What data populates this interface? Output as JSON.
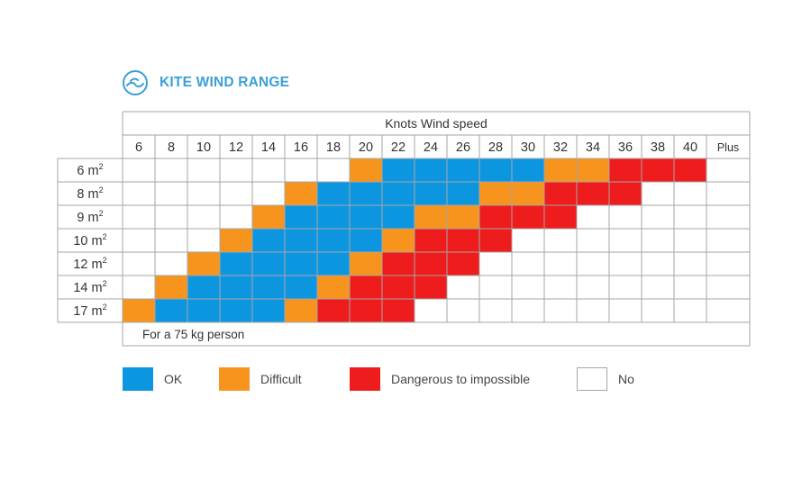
{
  "header": {
    "title": "KITE WIND RANGE",
    "logo_icon": "wave-circle-icon",
    "accent_color": "#3aa0d8"
  },
  "chart_data": {
    "type": "table",
    "title": "KITE WIND RANGE",
    "xlabel": "Knots Wind speed",
    "note": "For a 75 kg person",
    "x": [
      "6",
      "8",
      "10",
      "12",
      "14",
      "16",
      "18",
      "20",
      "22",
      "24",
      "26",
      "28",
      "30",
      "32",
      "34",
      "36",
      "38",
      "40",
      "Plus"
    ],
    "rows": [
      {
        "size": "6",
        "cells": [
          "N",
          "N",
          "N",
          "N",
          "N",
          "N",
          "N",
          "D",
          "O",
          "O",
          "O",
          "O",
          "O",
          "D",
          "D",
          "X",
          "X",
          "X",
          "N"
        ]
      },
      {
        "size": "8",
        "cells": [
          "N",
          "N",
          "N",
          "N",
          "N",
          "D",
          "O",
          "O",
          "O",
          "O",
          "O",
          "D",
          "D",
          "X",
          "X",
          "X",
          "N",
          "N",
          "N"
        ]
      },
      {
        "size": "9",
        "cells": [
          "N",
          "N",
          "N",
          "N",
          "D",
          "O",
          "O",
          "O",
          "O",
          "D",
          "D",
          "X",
          "X",
          "X",
          "N",
          "N",
          "N",
          "N",
          "N"
        ]
      },
      {
        "size": "10",
        "cells": [
          "N",
          "N",
          "N",
          "D",
          "O",
          "O",
          "O",
          "O",
          "D",
          "X",
          "X",
          "X",
          "N",
          "N",
          "N",
          "N",
          "N",
          "N",
          "N"
        ]
      },
      {
        "size": "12",
        "cells": [
          "N",
          "N",
          "D",
          "O",
          "O",
          "O",
          "O",
          "D",
          "X",
          "X",
          "X",
          "N",
          "N",
          "N",
          "N",
          "N",
          "N",
          "N",
          "N"
        ]
      },
      {
        "size": "14",
        "cells": [
          "N",
          "D",
          "O",
          "O",
          "O",
          "O",
          "D",
          "X",
          "X",
          "X",
          "N",
          "N",
          "N",
          "N",
          "N",
          "N",
          "N",
          "N",
          "N"
        ]
      },
      {
        "size": "17",
        "cells": [
          "D",
          "O",
          "O",
          "O",
          "O",
          "D",
          "X",
          "X",
          "X",
          "N",
          "N",
          "N",
          "N",
          "N",
          "N",
          "N",
          "N",
          "N",
          "N"
        ]
      }
    ],
    "row_unit": "m",
    "row_unit_sup": "2",
    "categories": {
      "O": {
        "label": "OK",
        "color": "#0d96e0"
      },
      "D": {
        "label": "Difficult",
        "color": "#f7941d"
      },
      "X": {
        "label": "Dangerous to impossible",
        "color": "#ee1c1c"
      },
      "N": {
        "label": "No",
        "color": "#ffffff"
      }
    },
    "legend_order": [
      "O",
      "D",
      "X",
      "N"
    ],
    "grid_color": "#a6a6a6"
  }
}
